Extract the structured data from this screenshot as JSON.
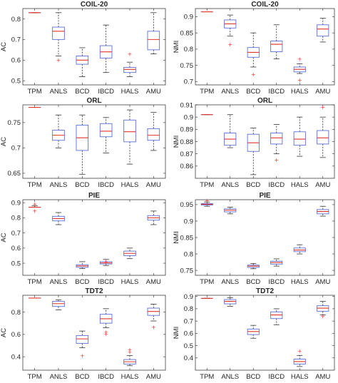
{
  "colors": {
    "box": "#5b6fd6",
    "median": "#e0352b",
    "whisker": "#333333",
    "outlier": "#e0352b",
    "axis": "#262626"
  },
  "chart_data": [
    {
      "type": "boxplot",
      "title": "COIL-20",
      "ylabel": "AC",
      "categories": [
        "TPM",
        "ANLS",
        "BCD",
        "IBCD",
        "HALS",
        "AMU"
      ],
      "ylim": [
        0.48,
        0.85
      ],
      "yticks": [
        0.5,
        0.6,
        0.7,
        0.8
      ],
      "boxes": [
        {
          "min": 0.83,
          "q1": 0.83,
          "median": 0.83,
          "q3": 0.83,
          "max": 0.83,
          "outliers": []
        },
        {
          "min": 0.62,
          "q1": 0.7,
          "median": 0.74,
          "q3": 0.76,
          "max": 0.83,
          "outliers": [
            0.6
          ]
        },
        {
          "min": 0.52,
          "q1": 0.58,
          "median": 0.6,
          "q3": 0.62,
          "max": 0.66,
          "outliers": []
        },
        {
          "min": 0.54,
          "q1": 0.61,
          "median": 0.64,
          "q3": 0.67,
          "max": 0.77,
          "outliers": []
        },
        {
          "min": 0.52,
          "q1": 0.54,
          "median": 0.555,
          "q3": 0.565,
          "max": 0.59,
          "outliers": [
            0.63
          ]
        },
        {
          "min": 0.63,
          "q1": 0.65,
          "median": 0.7,
          "q3": 0.74,
          "max": 0.83,
          "outliers": []
        }
      ]
    },
    {
      "type": "boxplot",
      "title": "COIL-20",
      "ylabel": "NMI",
      "categories": [
        "TPM",
        "ANLS",
        "BCD",
        "IBCD",
        "HALS",
        "AMU"
      ],
      "ylim": [
        0.69,
        0.925
      ],
      "yticks": [
        0.7,
        0.75,
        0.8,
        0.85,
        0.9
      ],
      "boxes": [
        {
          "min": 0.915,
          "q1": 0.915,
          "median": 0.915,
          "q3": 0.915,
          "max": 0.915,
          "outliers": []
        },
        {
          "min": 0.84,
          "q1": 0.865,
          "median": 0.878,
          "q3": 0.89,
          "max": 0.905,
          "outliers": [
            0.815
          ]
        },
        {
          "min": 0.745,
          "q1": 0.775,
          "median": 0.79,
          "q3": 0.805,
          "max": 0.85,
          "outliers": [
            0.722
          ]
        },
        {
          "min": 0.77,
          "q1": 0.792,
          "median": 0.815,
          "q3": 0.825,
          "max": 0.875,
          "outliers": []
        },
        {
          "min": 0.725,
          "q1": 0.73,
          "median": 0.738,
          "q3": 0.745,
          "max": 0.755,
          "outliers": [
            0.77,
            0.705
          ]
        },
        {
          "min": 0.822,
          "q1": 0.84,
          "median": 0.862,
          "q3": 0.875,
          "max": 0.895,
          "outliers": []
        }
      ]
    },
    {
      "type": "boxplot",
      "title": "ORL",
      "ylabel": "AC",
      "categories": [
        "TPM",
        "ANLS",
        "BCD",
        "IBCD",
        "HALS",
        "AMU"
      ],
      "ylim": [
        0.64,
        0.785
      ],
      "yticks": [
        0.65,
        0.7,
        0.75
      ],
      "boxes": [
        {
          "min": 0.78,
          "q1": 0.78,
          "median": 0.78,
          "q3": 0.78,
          "max": 0.78,
          "outliers": []
        },
        {
          "min": 0.7,
          "q1": 0.715,
          "median": 0.725,
          "q3": 0.735,
          "max": 0.765,
          "outliers": []
        },
        {
          "min": 0.648,
          "q1": 0.695,
          "median": 0.72,
          "q3": 0.745,
          "max": 0.765,
          "outliers": []
        },
        {
          "min": 0.69,
          "q1": 0.722,
          "median": 0.733,
          "q3": 0.748,
          "max": 0.76,
          "outliers": []
        },
        {
          "min": 0.668,
          "q1": 0.712,
          "median": 0.732,
          "q3": 0.755,
          "max": 0.775,
          "outliers": []
        },
        {
          "min": 0.695,
          "q1": 0.715,
          "median": 0.725,
          "q3": 0.738,
          "max": 0.77,
          "outliers": []
        }
      ]
    },
    {
      "type": "boxplot",
      "title": "ORL",
      "ylabel": "NMI",
      "categories": [
        "TPM",
        "ANLS",
        "BCD",
        "IBCD",
        "HALS",
        "AMU"
      ],
      "ylim": [
        0.85,
        0.91
      ],
      "yticks": [
        0.86,
        0.87,
        0.88,
        0.89,
        0.9,
        0.91
      ],
      "boxes": [
        {
          "min": 0.902,
          "q1": 0.902,
          "median": 0.902,
          "q3": 0.902,
          "max": 0.902,
          "outliers": []
        },
        {
          "min": 0.875,
          "q1": 0.877,
          "median": 0.882,
          "q3": 0.887,
          "max": 0.902,
          "outliers": []
        },
        {
          "min": 0.853,
          "q1": 0.872,
          "median": 0.879,
          "q3": 0.886,
          "max": 0.891,
          "outliers": []
        },
        {
          "min": 0.87,
          "q1": 0.878,
          "median": 0.883,
          "q3": 0.887,
          "max": 0.894,
          "outliers": [
            0.865
          ]
        },
        {
          "min": 0.868,
          "q1": 0.877,
          "median": 0.882,
          "q3": 0.888,
          "max": 0.9,
          "outliers": []
        },
        {
          "min": 0.867,
          "q1": 0.878,
          "median": 0.883,
          "q3": 0.889,
          "max": 0.9,
          "outliers": [
            0.908
          ]
        }
      ]
    },
    {
      "type": "boxplot",
      "title": "PIE",
      "ylabel": "AC",
      "categories": [
        "TPM",
        "ANLS",
        "BCD",
        "IBCD",
        "HALS",
        "AMU"
      ],
      "ylim": [
        0.42,
        0.92
      ],
      "yticks": [
        0.5,
        0.6,
        0.7,
        0.8,
        0.9
      ],
      "boxes": [
        {
          "min": 0.87,
          "q1": 0.87,
          "median": 0.87,
          "q3": 0.87,
          "max": 0.88,
          "outliers": [
            0.89,
            0.845
          ]
        },
        {
          "min": 0.755,
          "q1": 0.78,
          "median": 0.795,
          "q3": 0.81,
          "max": 0.835,
          "outliers": []
        },
        {
          "min": 0.465,
          "q1": 0.473,
          "median": 0.482,
          "q3": 0.49,
          "max": 0.51,
          "outliers": []
        },
        {
          "min": 0.485,
          "q1": 0.495,
          "median": 0.502,
          "q3": 0.51,
          "max": 0.525,
          "outliers": [
            0.508
          ]
        },
        {
          "min": 0.53,
          "q1": 0.55,
          "median": 0.565,
          "q3": 0.58,
          "max": 0.6,
          "outliers": []
        },
        {
          "min": 0.755,
          "q1": 0.785,
          "median": 0.8,
          "q3": 0.815,
          "max": 0.845,
          "outliers": []
        }
      ]
    },
    {
      "type": "boxplot",
      "title": "PIE",
      "ylabel": "NMI",
      "categories": [
        "TPM",
        "ANLS",
        "BCD",
        "IBCD",
        "HALS",
        "AMU"
      ],
      "ylim": [
        0.735,
        0.965
      ],
      "yticks": [
        0.75,
        0.8,
        0.85,
        0.9,
        0.95
      ],
      "boxes": [
        {
          "min": 0.945,
          "q1": 0.949,
          "median": 0.951,
          "q3": 0.953,
          "max": 0.958,
          "outliers": [
            0.962
          ]
        },
        {
          "min": 0.922,
          "q1": 0.928,
          "median": 0.933,
          "q3": 0.937,
          "max": 0.942,
          "outliers": []
        },
        {
          "min": 0.755,
          "q1": 0.759,
          "median": 0.763,
          "q3": 0.766,
          "max": 0.771,
          "outliers": []
        },
        {
          "min": 0.763,
          "q1": 0.769,
          "median": 0.774,
          "q3": 0.778,
          "max": 0.785,
          "outliers": []
        },
        {
          "min": 0.8,
          "q1": 0.807,
          "median": 0.812,
          "q3": 0.818,
          "max": 0.828,
          "outliers": []
        },
        {
          "min": 0.915,
          "q1": 0.922,
          "median": 0.929,
          "q3": 0.935,
          "max": 0.945,
          "outliers": []
        }
      ]
    },
    {
      "type": "boxplot",
      "title": "TDT2",
      "ylabel": "AC",
      "categories": [
        "TPM",
        "ANLS",
        "BCD",
        "IBCD",
        "HALS",
        "AMU"
      ],
      "ylim": [
        0.28,
        0.95
      ],
      "yticks": [
        0.4,
        0.6,
        0.8
      ],
      "boxes": [
        {
          "min": 0.925,
          "q1": 0.925,
          "median": 0.925,
          "q3": 0.925,
          "max": 0.925,
          "outliers": []
        },
        {
          "min": 0.82,
          "q1": 0.85,
          "median": 0.875,
          "q3": 0.895,
          "max": 0.91,
          "outliers": []
        },
        {
          "min": 0.48,
          "q1": 0.52,
          "median": 0.56,
          "q3": 0.59,
          "max": 0.63,
          "outliers": [
            0.41
          ]
        },
        {
          "min": 0.66,
          "q1": 0.7,
          "median": 0.74,
          "q3": 0.78,
          "max": 0.83,
          "outliers": [
            0.62,
            0.605
          ]
        },
        {
          "min": 0.32,
          "q1": 0.335,
          "median": 0.355,
          "q3": 0.375,
          "max": 0.41,
          "outliers": [
            0.465,
            0.44
          ]
        },
        {
          "min": 0.72,
          "q1": 0.77,
          "median": 0.805,
          "q3": 0.835,
          "max": 0.87,
          "outliers": [
            0.665
          ]
        }
      ]
    },
    {
      "type": "boxplot",
      "title": "TDT2",
      "ylabel": "NMI",
      "categories": [
        "TPM",
        "ANLS",
        "BCD",
        "IBCD",
        "HALS",
        "AMU"
      ],
      "ylim": [
        0.3,
        0.91
      ],
      "yticks": [
        0.4,
        0.5,
        0.6,
        0.7,
        0.8,
        0.9
      ],
      "boxes": [
        {
          "min": 0.885,
          "q1": 0.885,
          "median": 0.885,
          "q3": 0.885,
          "max": 0.885,
          "outliers": []
        },
        {
          "min": 0.82,
          "q1": 0.84,
          "median": 0.86,
          "q3": 0.875,
          "max": 0.89,
          "outliers": []
        },
        {
          "min": 0.56,
          "q1": 0.59,
          "median": 0.615,
          "q3": 0.635,
          "max": 0.665,
          "outliers": []
        },
        {
          "min": 0.67,
          "q1": 0.72,
          "median": 0.75,
          "q3": 0.775,
          "max": 0.8,
          "outliers": []
        },
        {
          "min": 0.33,
          "q1": 0.35,
          "median": 0.37,
          "q3": 0.39,
          "max": 0.42,
          "outliers": [
            0.455
          ]
        },
        {
          "min": 0.75,
          "q1": 0.78,
          "median": 0.805,
          "q3": 0.825,
          "max": 0.86,
          "outliers": [
            0.74
          ]
        }
      ]
    }
  ]
}
